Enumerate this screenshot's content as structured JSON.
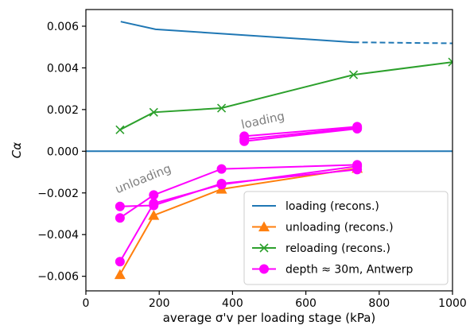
{
  "chart_data": {
    "type": "line",
    "xlabel": "average σ'v per loading stage (kPa)",
    "ylabel": "Cα",
    "xlim": [
      0,
      1000
    ],
    "ylim": [
      -0.0067,
      0.0068
    ],
    "x_ticks": [
      0,
      200,
      400,
      600,
      800,
      1000
    ],
    "x_tick_labels": [
      "0",
      "200",
      "400",
      "600",
      "800",
      "1000"
    ],
    "y_ticks": [
      0.006,
      0.004,
      0.002,
      0.0,
      -0.002,
      -0.004,
      -0.006
    ],
    "y_tick_labels": [
      "0.006",
      "0.004",
      "0.002",
      "0.000",
      "−0.002",
      "−0.004",
      "−0.006"
    ],
    "grid": false,
    "legend_position": "bottom-right",
    "reference_line": {
      "y": 0.0,
      "color": "#1f77b4"
    },
    "annotations": [
      {
        "text": "loading",
        "x": 485,
        "y": 0.0013,
        "rotation": -12
      },
      {
        "text": "unloading",
        "x": 160,
        "y": -0.0015,
        "rotation": -22
      }
    ],
    "series": [
      {
        "name": "loading (recons.)",
        "color": "#1f77b4",
        "marker": "none",
        "segments": [
          {
            "style": "solid",
            "points": [
              [
                95,
                0.00622
              ],
              [
                190,
                0.00585
              ],
              [
                730,
                0.00523
              ]
            ]
          },
          {
            "style": "dashed",
            "points": [
              [
                730,
                0.00523
              ],
              [
                1000,
                0.00518
              ]
            ]
          }
        ]
      },
      {
        "name": "unloading (recons.)",
        "color": "#ff7f0e",
        "marker": "triangle",
        "segments": [
          {
            "style": "solid",
            "points": [
              [
                93,
                -0.00592
              ],
              [
                185,
                -0.00308
              ],
              [
                370,
                -0.00182
              ],
              [
                740,
                -0.00082
              ]
            ]
          }
        ]
      },
      {
        "name": "reloading (recons.)",
        "color": "#2ca02c",
        "marker": "x",
        "segments": [
          {
            "style": "solid",
            "points": [
              [
                93,
                0.00103
              ],
              [
                185,
                0.00187
              ],
              [
                370,
                0.00207
              ],
              [
                730,
                0.00367
              ],
              [
                1000,
                0.00428
              ]
            ]
          }
        ]
      },
      {
        "name": "depth ≈ 30m, Antwerp",
        "color": "#ff00ff",
        "marker": "circle",
        "segments": [
          {
            "style": "solid",
            "points": [
              [
                93,
                -0.0053
              ],
              [
                185,
                -0.0025
              ],
              [
                370,
                -0.0016
              ],
              [
                740,
                -0.00072
              ]
            ]
          },
          {
            "style": "solid",
            "points": [
              [
                93,
                -0.0032
              ],
              [
                185,
                -0.0021
              ],
              [
                370,
                -0.00085
              ],
              [
                740,
                -0.00065
              ]
            ]
          },
          {
            "style": "solid",
            "points": [
              [
                93,
                -0.00265
              ],
              [
                185,
                -0.0026
              ],
              [
                370,
                -0.00155
              ],
              [
                740,
                -0.00088
              ]
            ]
          },
          {
            "style": "solid",
            "points": [
              [
                432,
                0.00072
              ],
              [
                740,
                0.00118
              ]
            ]
          },
          {
            "style": "solid",
            "points": [
              [
                432,
                0.00048
              ],
              [
                740,
                0.00108
              ]
            ]
          },
          {
            "style": "solid",
            "points": [
              [
                432,
                0.00058
              ],
              [
                740,
                0.00113
              ]
            ]
          }
        ]
      }
    ]
  }
}
